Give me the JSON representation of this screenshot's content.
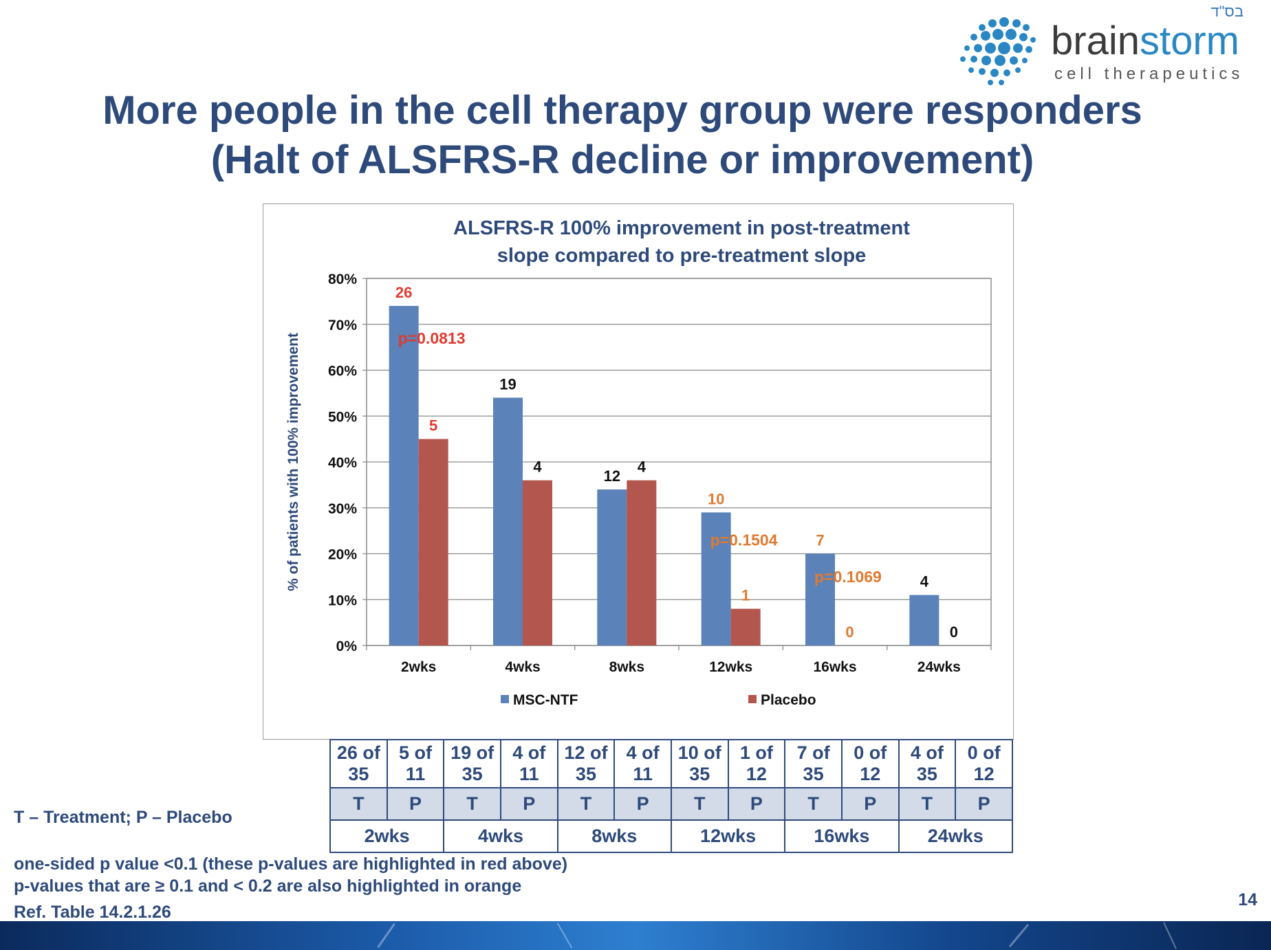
{
  "header": {
    "hebrew_mark": "בס\"ד",
    "logo_word_1": "brain",
    "logo_word_2": "storm",
    "logo_sub": "cell therapeutics"
  },
  "title": {
    "line1": "More people in the cell therapy group were responders",
    "line2": "(Halt of ALSFRS-R decline or improvement)"
  },
  "chart_data": {
    "type": "bar",
    "title_line1": "ALSFRS-R 100% improvement in post-treatment",
    "title_line2": "slope compared to pre-treatment slope",
    "ylabel": "% of patients with 100% improvement",
    "xlabel": "",
    "categories": [
      "2wks",
      "4wks",
      "8wks",
      "12wks",
      "16wks",
      "24wks"
    ],
    "ylim": [
      0,
      80
    ],
    "yticks": [
      "0%",
      "10%",
      "20%",
      "30%",
      "40%",
      "50%",
      "60%",
      "70%",
      "80%"
    ],
    "grid": true,
    "legend_position": "bottom",
    "series": [
      {
        "name": "MSC-NTF",
        "color": "#5b82b9",
        "values": [
          74,
          54,
          34,
          29,
          20,
          11
        ],
        "labels": [
          "26",
          "19",
          "12",
          "10",
          "7",
          "4"
        ],
        "label_colors": [
          "#e03a2f",
          "#111111",
          "#111111",
          "#e07a2f",
          "#e07a2f",
          "#111111"
        ]
      },
      {
        "name": "Placebo",
        "color": "#b3564e",
        "values": [
          45,
          36,
          36,
          8,
          0,
          0
        ],
        "labels": [
          "5",
          "4",
          "4",
          "1",
          "0",
          "0"
        ],
        "label_colors": [
          "#e03a2f",
          "#111111",
          "#111111",
          "#e07a2f",
          "#e07a2f",
          "#111111"
        ]
      }
    ],
    "annotations": [
      {
        "text": "p=0.0813",
        "category": "2wks",
        "y": 67,
        "color": "#e03a2f"
      },
      {
        "text": "p=0.1504",
        "category": "12wks",
        "y": 23,
        "color": "#e07a2f"
      },
      {
        "text": "p=0.1069",
        "category": "16wks",
        "y": 15,
        "color": "#e07a2f"
      }
    ]
  },
  "table": {
    "counts": [
      [
        "26 of",
        "35"
      ],
      [
        "5 of",
        "11"
      ],
      [
        "19 of",
        "35"
      ],
      [
        "4 of",
        "11"
      ],
      [
        "12 of",
        "35"
      ],
      [
        "4 of",
        "11"
      ],
      [
        "10 of",
        "35"
      ],
      [
        "1 of",
        "12"
      ],
      [
        "7 of",
        "35"
      ],
      [
        "0 of",
        "12"
      ],
      [
        "4 of",
        "35"
      ],
      [
        "0 of",
        "12"
      ]
    ],
    "groups": [
      "T",
      "P",
      "T",
      "P",
      "T",
      "P",
      "T",
      "P",
      "T",
      "P",
      "T",
      "P"
    ],
    "weeks": [
      "2wks",
      "4wks",
      "8wks",
      "12wks",
      "16wks",
      "24wks"
    ]
  },
  "notes": {
    "legend_tp": "T – Treatment; P – Placebo",
    "p_red": "one-sided p value <0.1 (these p-values are highlighted in red above)",
    "p_orange": "p-values that are ≥ 0.1 and < 0.2 are also highlighted in orange",
    "ref": "Ref. Table 14.2.1.26"
  },
  "page_number": "14"
}
